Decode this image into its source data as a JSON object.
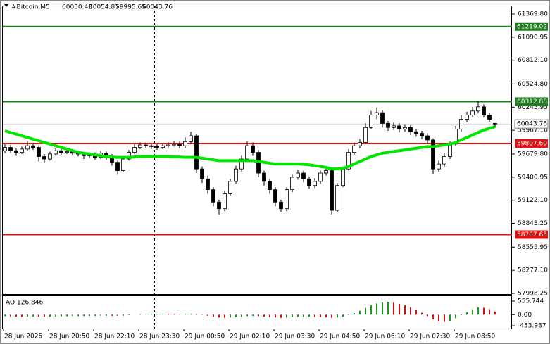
{
  "chart_data": {
    "type": "candlestick",
    "symbol": "#Bitcoin,M5",
    "categories": [
      "28 Jun 2026",
      null,
      null,
      null,
      null,
      null,
      null,
      null,
      "28 Jun 20:50",
      null,
      null,
      null,
      null,
      null,
      null,
      null,
      "28 Jun 22:10",
      null,
      null,
      null,
      null,
      null,
      null,
      null,
      "28 Jun 23:30",
      null,
      null,
      null,
      null,
      null,
      null,
      null,
      "29 Jun 00:50",
      null,
      null,
      null,
      null,
      null,
      null,
      null,
      "29 Jun 02:10",
      null,
      null,
      null,
      null,
      null,
      null,
      null,
      "29 Jun 03:30",
      null,
      null,
      null,
      null,
      null,
      null,
      null,
      "29 Jun 04:50",
      null,
      null,
      null,
      null,
      null,
      null,
      null,
      "29 Jun 06:10",
      null,
      null,
      null,
      null,
      null,
      null,
      null,
      "29 Jun 07:30",
      null,
      null,
      null,
      null,
      null,
      null,
      null,
      "29 Jun 08:50",
      null,
      null,
      null,
      null,
      null,
      null,
      null
    ],
    "open": [
      59720,
      59760,
      59720,
      59700,
      59740,
      59780,
      59760,
      59650,
      59620,
      59680,
      59720,
      59700,
      59710,
      59690,
      59680,
      59660,
      59670,
      59640,
      59690,
      59650,
      59580,
      59480,
      59620,
      59700,
      59760,
      59790,
      59780,
      59770,
      59760,
      59780,
      59790,
      59800,
      59780,
      59830,
      59900,
      59500,
      59380,
      59250,
      59100,
      59020,
      59200,
      59350,
      59500,
      59620,
      59780,
      59700,
      59450,
      59350,
      59250,
      59100,
      59020,
      59250,
      59400,
      59450,
      59380,
      59300,
      59350,
      59450,
      59480,
      59000,
      59300,
      59500,
      59700,
      59780,
      59820,
      60000,
      60150,
      60180,
      60050,
      60000,
      60020,
      59980,
      60000,
      59950,
      59930,
      59900,
      59850,
      59500,
      59560,
      59650,
      59800,
      59980,
      60100,
      60150,
      60200,
      60250,
      60150,
      60050.43
    ],
    "high": [
      59800,
      59790,
      59750,
      59770,
      59830,
      59810,
      59780,
      59680,
      59710,
      59750,
      59740,
      59740,
      59730,
      59720,
      59700,
      59700,
      59700,
      59720,
      59710,
      59680,
      59600,
      59650,
      59730,
      59800,
      59820,
      59820,
      59810,
      59800,
      59810,
      59820,
      59840,
      59830,
      59880,
      59950,
      59920,
      59530,
      59420,
      59280,
      59130,
      59240,
      59380,
      59540,
      59660,
      59830,
      59820,
      59730,
      59480,
      59380,
      59280,
      59130,
      59280,
      59430,
      59490,
      59480,
      59410,
      59390,
      59480,
      59510,
      59500,
      59330,
      59530,
      59740,
      59820,
      59860,
      60050,
      60200,
      60240,
      60210,
      60080,
      60060,
      60050,
      60040,
      60030,
      59980,
      59960,
      59930,
      59870,
      59600,
      59690,
      59830,
      60020,
      60150,
      60190,
      60250,
      60320,
      60280,
      60180,
      60054.87
    ],
    "low": [
      59690,
      59690,
      59660,
      59680,
      59720,
      59730,
      59590,
      59580,
      59600,
      59660,
      59670,
      59680,
      59660,
      59650,
      59620,
      59630,
      59610,
      59620,
      59610,
      59540,
      59430,
      59460,
      59600,
      59680,
      59740,
      59750,
      59740,
      59730,
      59740,
      59760,
      59770,
      59750,
      59750,
      59800,
      59450,
      59330,
      59200,
      59050,
      58950,
      58990,
      59170,
      59320,
      59470,
      59600,
      59660,
      59400,
      59300,
      59200,
      59050,
      58980,
      58990,
      59220,
      59370,
      59340,
      59260,
      59270,
      59320,
      59420,
      58950,
      58980,
      59280,
      59480,
      59670,
      59750,
      59800,
      59980,
      60100,
      60000,
      59960,
      59970,
      59940,
      59950,
      59910,
      59890,
      59860,
      59800,
      59440,
      59470,
      59530,
      59620,
      59780,
      59950,
      60070,
      60120,
      60170,
      60120,
      60070,
      59995.65
    ],
    "close": [
      59760,
      59720,
      59700,
      59740,
      59780,
      59760,
      59650,
      59620,
      59680,
      59720,
      59700,
      59710,
      59690,
      59680,
      59660,
      59670,
      59640,
      59690,
      59650,
      59580,
      59480,
      59620,
      59700,
      59760,
      59790,
      59780,
      59770,
      59760,
      59780,
      59790,
      59800,
      59780,
      59830,
      59900,
      59500,
      59380,
      59250,
      59100,
      59020,
      59200,
      59350,
      59500,
      59620,
      59780,
      59700,
      59450,
      59350,
      59250,
      59100,
      59020,
      59250,
      59400,
      59450,
      59380,
      59300,
      59350,
      59450,
      59480,
      59000,
      59300,
      59500,
      59700,
      59780,
      59820,
      60000,
      60150,
      60180,
      60050,
      60000,
      60020,
      59980,
      60000,
      59950,
      59930,
      59900,
      59850,
      59500,
      59560,
      59650,
      59800,
      59980,
      60100,
      60150,
      60200,
      60250,
      60150,
      60100,
      60043.76
    ],
    "moving_average": {
      "color": "#00e600",
      "values": [
        59960,
        59940,
        59920,
        59900,
        59880,
        59860,
        59840,
        59820,
        59800,
        59780,
        59760,
        59740,
        59720,
        59700,
        59690,
        59680,
        59670,
        59660,
        59650,
        59645,
        59640,
        59640,
        59640,
        59645,
        59650,
        59650,
        59650,
        59650,
        59650,
        59650,
        59645,
        59645,
        59640,
        59640,
        59640,
        59630,
        59620,
        59610,
        59600,
        59600,
        59600,
        59600,
        59600,
        59600,
        59600,
        59590,
        59580,
        59570,
        59560,
        59560,
        59560,
        59560,
        59560,
        59555,
        59550,
        59540,
        59530,
        59520,
        59500,
        59500,
        59510,
        59530,
        59560,
        59590,
        59620,
        59650,
        59670,
        59690,
        59700,
        59710,
        59720,
        59730,
        59740,
        59750,
        59760,
        59770,
        59770,
        59780,
        59790,
        59800,
        59820,
        59850,
        59880,
        59910,
        59940,
        59970,
        59990,
        60010
      ]
    },
    "ylim": [
      57998.25,
      61369.8
    ],
    "yticks": [
      {
        "value": 61369.8,
        "label": "61369.80"
      },
      61090.95,
      {
        "value": 60812.1,
        "label": "60812.10"
      },
      {
        "value": 60524.8,
        "label": "60524.80"
      },
      60245.95,
      {
        "value": 59967.1,
        "label": "59967.10"
      },
      {
        "value": 59679.8,
        "label": "59679.80"
      },
      59400.95,
      {
        "value": 59122.1,
        "label": "59122.10"
      },
      58843.25,
      58555.95,
      {
        "value": 58277.1,
        "label": "58277.10"
      },
      57998.25
    ],
    "levels": [
      {
        "value": 61219.02,
        "label": "61219.02",
        "color": "#1e7d1e"
      },
      {
        "value": 60312.88,
        "label": "60312.88",
        "color": "#1e7d1e"
      },
      {
        "value": 59807.6,
        "label": "59807.60",
        "color": "#e01010"
      },
      {
        "value": 58707.65,
        "label": "58707.65",
        "color": "#e01010"
      }
    ],
    "ao": {
      "name": "AO",
      "values": [
        -60,
        -70,
        -80,
        -85,
        -80,
        -75,
        -80,
        -85,
        -80,
        -75,
        -70,
        -65,
        -60,
        -60,
        -55,
        -50,
        -50,
        -45,
        -40,
        -45,
        -50,
        -40,
        -20,
        0,
        20,
        30,
        35,
        40,
        40,
        35,
        30,
        25,
        30,
        40,
        20,
        -10,
        -50,
        -90,
        -120,
        -130,
        -120,
        -100,
        -80,
        -60,
        -50,
        -60,
        -80,
        -100,
        -120,
        -130,
        -120,
        -100,
        -90,
        -80,
        -80,
        -90,
        -100,
        -110,
        -130,
        -120,
        -80,
        -20,
        60,
        160,
        280,
        380,
        460,
        500,
        520,
        490,
        440,
        380,
        300,
        200,
        80,
        -60,
        -200,
        -280,
        -300,
        -250,
        -150,
        -20,
        100,
        220,
        300,
        280,
        220,
        126.846
      ],
      "up_color": "#1a9a1a",
      "down_color": "#d01010",
      "ylim": [
        -453.987,
        555.744
      ],
      "yticks": [
        555.744,
        {
          "value": 0,
          "label": "0.00"
        },
        -453.987
      ]
    }
  }
}
